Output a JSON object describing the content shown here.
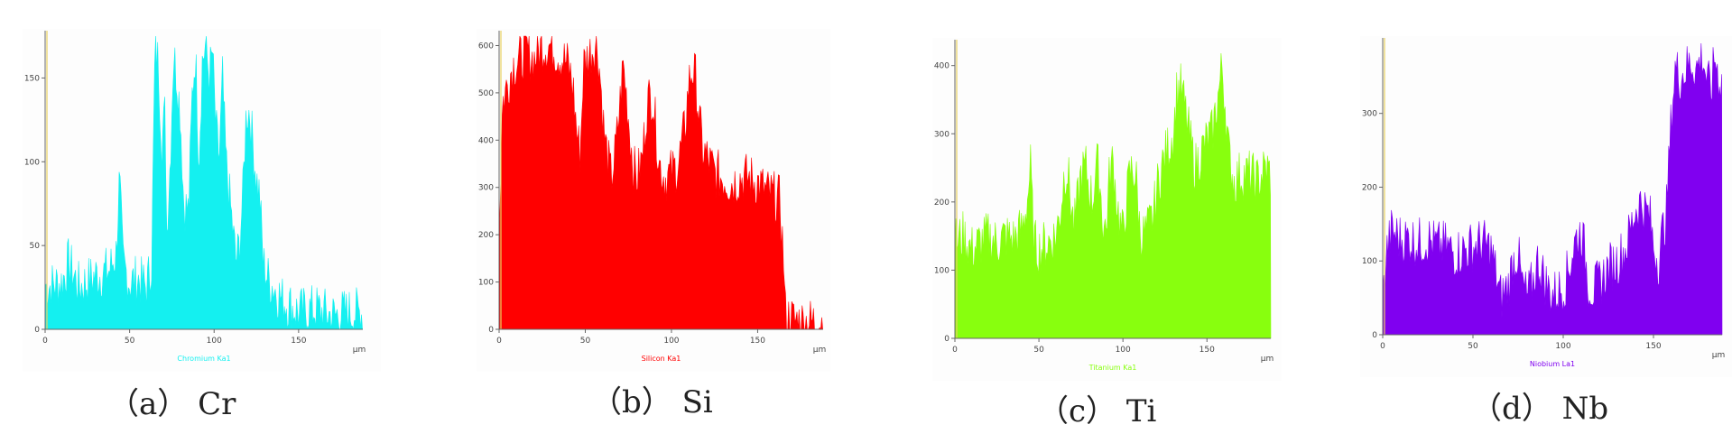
{
  "chart_data": [
    {
      "type": "area",
      "element_label": "Chromium Ka1",
      "caption": "（a） Cr",
      "xlabel": "μm",
      "xlim": [
        0,
        188
      ],
      "ylim": [
        0,
        175
      ],
      "xticks": [
        0,
        50,
        100,
        150
      ],
      "yticks": [
        0,
        50,
        100,
        150
      ],
      "color": "#14f0f0",
      "profile": [
        [
          0,
          25
        ],
        [
          10,
          28
        ],
        [
          14,
          40
        ],
        [
          20,
          25
        ],
        [
          30,
          32
        ],
        [
          38,
          35
        ],
        [
          42,
          45
        ],
        [
          44,
          90
        ],
        [
          46,
          40
        ],
        [
          50,
          28
        ],
        [
          55,
          30
        ],
        [
          60,
          25
        ],
        [
          63,
          40
        ],
        [
          65,
          165
        ],
        [
          67,
          160
        ],
        [
          69,
          110
        ],
        [
          71,
          130
        ],
        [
          72,
          60
        ],
        [
          74,
          100
        ],
        [
          76,
          165
        ],
        [
          78,
          150
        ],
        [
          80,
          130
        ],
        [
          82,
          75
        ],
        [
          85,
          70
        ],
        [
          87,
          140
        ],
        [
          89,
          165
        ],
        [
          91,
          100
        ],
        [
          93,
          160
        ],
        [
          95,
          170
        ],
        [
          97,
          150
        ],
        [
          99,
          165
        ],
        [
          101,
          120
        ],
        [
          103,
          100
        ],
        [
          105,
          150
        ],
        [
          107,
          100
        ],
        [
          109,
          80
        ],
        [
          111,
          60
        ],
        [
          113,
          40
        ],
        [
          115,
          50
        ],
        [
          117,
          80
        ],
        [
          119,
          130
        ],
        [
          121,
          130
        ],
        [
          123,
          110
        ],
        [
          125,
          90
        ],
        [
          127,
          80
        ],
        [
          129,
          40
        ],
        [
          132,
          30
        ],
        [
          140,
          18
        ],
        [
          150,
          10
        ],
        [
          160,
          12
        ],
        [
          170,
          8
        ],
        [
          180,
          10
        ],
        [
          188,
          10
        ]
      ]
    },
    {
      "type": "area",
      "element_label": "Silicon Ka1",
      "caption": "（b） Si",
      "xlabel": "μm",
      "xlim": [
        0,
        188
      ],
      "ylim": [
        0,
        620
      ],
      "xticks": [
        0,
        50,
        100,
        150
      ],
      "yticks": [
        0,
        100,
        200,
        300,
        400,
        500,
        600
      ],
      "color": "#ff0000",
      "profile": [
        [
          0,
          200
        ],
        [
          2,
          480
        ],
        [
          5,
          520
        ],
        [
          8,
          560
        ],
        [
          12,
          570
        ],
        [
          16,
          590
        ],
        [
          20,
          570
        ],
        [
          25,
          600
        ],
        [
          30,
          600
        ],
        [
          35,
          580
        ],
        [
          40,
          560
        ],
        [
          43,
          510
        ],
        [
          45,
          420
        ],
        [
          47,
          370
        ],
        [
          49,
          560
        ],
        [
          52,
          580
        ],
        [
          55,
          600
        ],
        [
          57,
          600
        ],
        [
          59,
          520
        ],
        [
          61,
          410
        ],
        [
          63,
          360
        ],
        [
          65,
          320
        ],
        [
          67,
          360
        ],
        [
          69,
          430
        ],
        [
          72,
          560
        ],
        [
          74,
          490
        ],
        [
          76,
          410
        ],
        [
          78,
          340
        ],
        [
          80,
          320
        ],
        [
          83,
          360
        ],
        [
          86,
          480
        ],
        [
          89,
          500
        ],
        [
          91,
          420
        ],
        [
          93,
          350
        ],
        [
          96,
          320
        ],
        [
          100,
          330
        ],
        [
          104,
          350
        ],
        [
          108,
          430
        ],
        [
          110,
          520
        ],
        [
          112,
          550
        ],
        [
          114,
          530
        ],
        [
          116,
          450
        ],
        [
          118,
          380
        ],
        [
          121,
          360
        ],
        [
          125,
          330
        ],
        [
          130,
          320
        ],
        [
          135,
          310
        ],
        [
          140,
          320
        ],
        [
          145,
          320
        ],
        [
          150,
          310
        ],
        [
          155,
          290
        ],
        [
          160,
          280
        ],
        [
          163,
          270
        ],
        [
          165,
          150
        ],
        [
          166,
          30
        ],
        [
          170,
          20
        ],
        [
          175,
          15
        ],
        [
          180,
          15
        ],
        [
          188,
          15
        ]
      ]
    },
    {
      "type": "area",
      "element_label": "Titanium Ka1",
      "caption": "（c） Ti",
      "xlabel": "μm",
      "xlim": [
        0,
        188
      ],
      "ylim": [
        0,
        430
      ],
      "xticks": [
        0,
        50,
        100,
        150
      ],
      "yticks": [
        0,
        100,
        200,
        300,
        400
      ],
      "color": "#88ff0e",
      "profile": [
        [
          0,
          140
        ],
        [
          5,
          150
        ],
        [
          10,
          130
        ],
        [
          15,
          140
        ],
        [
          20,
          150
        ],
        [
          25,
          140
        ],
        [
          30,
          150
        ],
        [
          35,
          145
        ],
        [
          40,
          160
        ],
        [
          43,
          200
        ],
        [
          45,
          250
        ],
        [
          47,
          140
        ],
        [
          50,
          130
        ],
        [
          55,
          140
        ],
        [
          60,
          150
        ],
        [
          63,
          190
        ],
        [
          65,
          240
        ],
        [
          67,
          250
        ],
        [
          69,
          200
        ],
        [
          71,
          160
        ],
        [
          73,
          200
        ],
        [
          75,
          240
        ],
        [
          78,
          250
        ],
        [
          80,
          220
        ],
        [
          82,
          200
        ],
        [
          84,
          260
        ],
        [
          86,
          240
        ],
        [
          88,
          170
        ],
        [
          90,
          160
        ],
        [
          92,
          240
        ],
        [
          94,
          260
        ],
        [
          96,
          210
        ],
        [
          98,
          170
        ],
        [
          100,
          150
        ],
        [
          102,
          200
        ],
        [
          104,
          240
        ],
        [
          106,
          250
        ],
        [
          108,
          230
        ],
        [
          110,
          160
        ],
        [
          112,
          150
        ],
        [
          115,
          160
        ],
        [
          118,
          180
        ],
        [
          121,
          230
        ],
        [
          124,
          260
        ],
        [
          127,
          280
        ],
        [
          130,
          300
        ],
        [
          132,
          360
        ],
        [
          134,
          370
        ],
        [
          136,
          350
        ],
        [
          138,
          320
        ],
        [
          140,
          290
        ],
        [
          143,
          250
        ],
        [
          146,
          270
        ],
        [
          150,
          290
        ],
        [
          153,
          300
        ],
        [
          155,
          330
        ],
        [
          157,
          360
        ],
        [
          159,
          400
        ],
        [
          161,
          340
        ],
        [
          163,
          270
        ],
        [
          166,
          230
        ],
        [
          170,
          240
        ],
        [
          175,
          240
        ],
        [
          180,
          230
        ],
        [
          185,
          250
        ],
        [
          188,
          240
        ]
      ]
    },
    {
      "type": "area",
      "element_label": "Niobium La1",
      "caption": "（d） Nb",
      "xlabel": "μm",
      "xlim": [
        0,
        188
      ],
      "ylim": [
        0,
        395
      ],
      "xticks": [
        0,
        50,
        100,
        150
      ],
      "yticks": [
        0,
        100,
        200,
        300
      ],
      "color": "#8000f0",
      "profile": [
        [
          0,
          40
        ],
        [
          2,
          110
        ],
        [
          5,
          140
        ],
        [
          10,
          130
        ],
        [
          15,
          130
        ],
        [
          20,
          125
        ],
        [
          25,
          130
        ],
        [
          30,
          120
        ],
        [
          35,
          120
        ],
        [
          40,
          110
        ],
        [
          45,
          115
        ],
        [
          50,
          120
        ],
        [
          55,
          125
        ],
        [
          60,
          115
        ],
        [
          63,
          80
        ],
        [
          65,
          50
        ],
        [
          68,
          60
        ],
        [
          70,
          70
        ],
        [
          72,
          100
        ],
        [
          75,
          110
        ],
        [
          77,
          70
        ],
        [
          80,
          50
        ],
        [
          83,
          70
        ],
        [
          86,
          100
        ],
        [
          89,
          80
        ],
        [
          92,
          60
        ],
        [
          95,
          55
        ],
        [
          98,
          60
        ],
        [
          101,
          70
        ],
        [
          104,
          100
        ],
        [
          107,
          130
        ],
        [
          110,
          140
        ],
        [
          112,
          110
        ],
        [
          114,
          70
        ],
        [
          117,
          60
        ],
        [
          120,
          70
        ],
        [
          125,
          90
        ],
        [
          130,
          100
        ],
        [
          135,
          120
        ],
        [
          138,
          150
        ],
        [
          140,
          170
        ],
        [
          143,
          180
        ],
        [
          145,
          170
        ],
        [
          148,
          160
        ],
        [
          150,
          120
        ],
        [
          153,
          100
        ],
        [
          155,
          140
        ],
        [
          157,
          160
        ],
        [
          160,
          300
        ],
        [
          162,
          360
        ],
        [
          165,
          350
        ],
        [
          168,
          360
        ],
        [
          171,
          370
        ],
        [
          174,
          360
        ],
        [
          177,
          380
        ],
        [
          180,
          340
        ],
        [
          182,
          330
        ],
        [
          184,
          380
        ],
        [
          186,
          350
        ],
        [
          188,
          340
        ]
      ]
    }
  ]
}
